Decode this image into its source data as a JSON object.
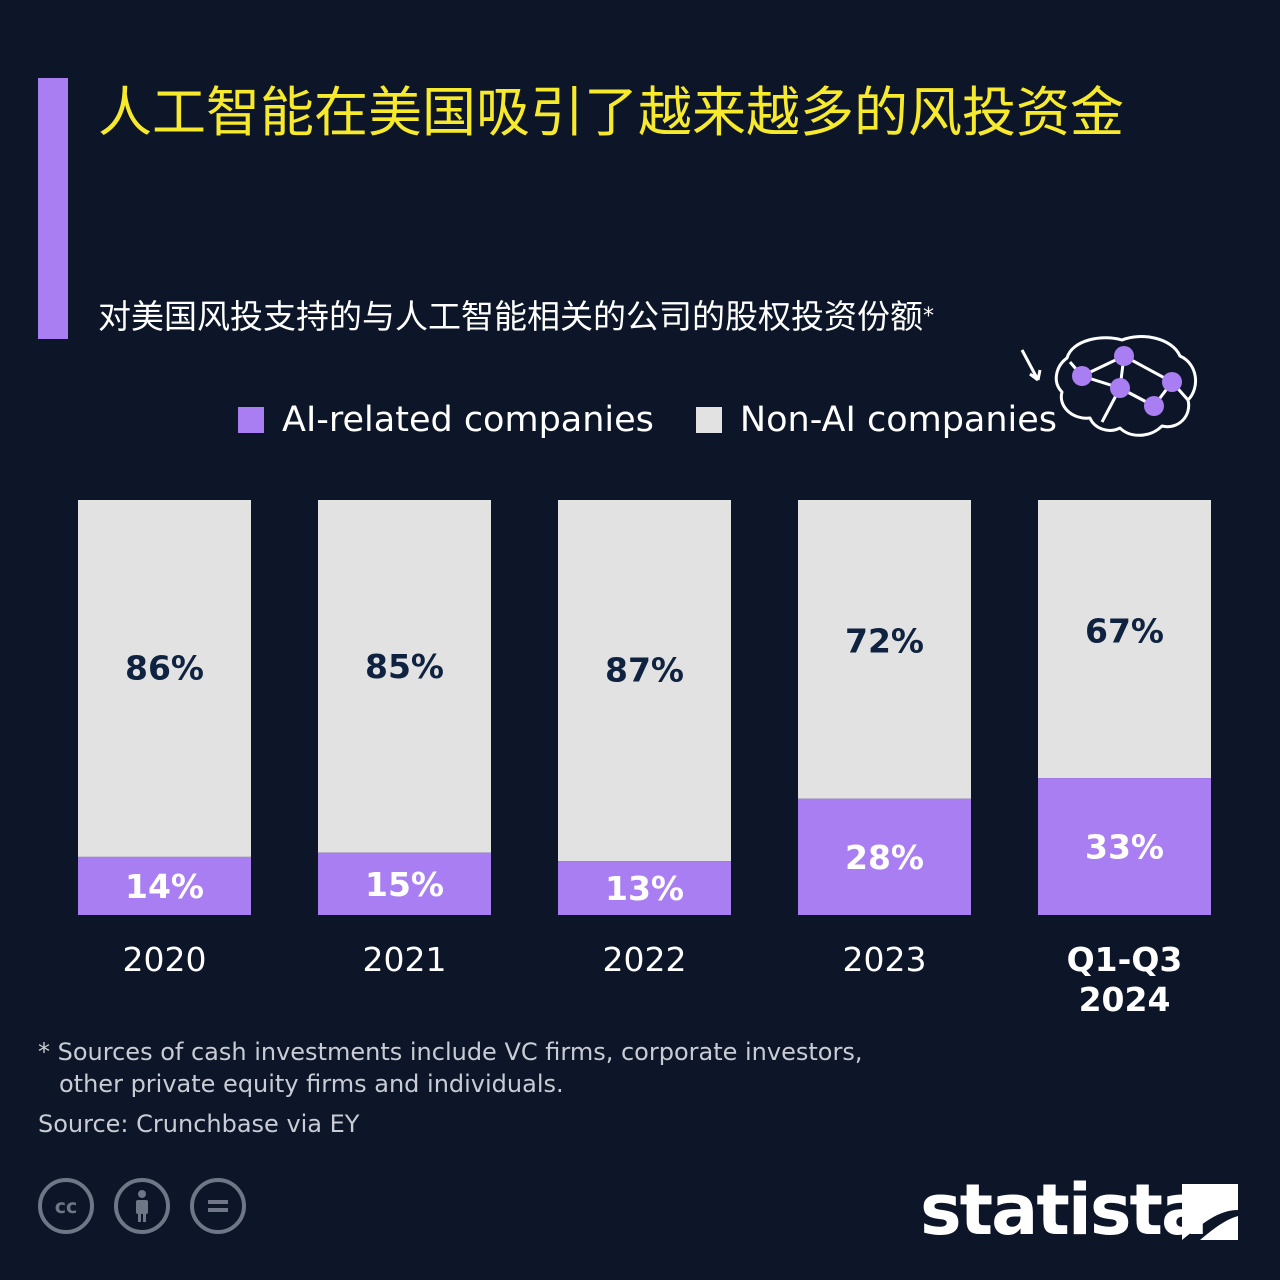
{
  "title": "人工智能在美国吸引了越来越多的风投资金",
  "subtitle": "对美国风投支持的与人工智能相关的公司的股权投资份额",
  "subtitle_marker": "*",
  "colors": {
    "background": "#0c1628",
    "accent": "#a97ef2",
    "title": "#f7e92c",
    "ai": "#a97ef2",
    "non_ai": "#e2e2e2",
    "label_dark": "#0f2340",
    "label_light": "#ffffff"
  },
  "legend": [
    {
      "label": "AI-related companies",
      "color": "#a97ef2"
    },
    {
      "label": "Non-AI companies",
      "color": "#e2e2e2"
    }
  ],
  "chart_data": {
    "type": "bar",
    "stacked": true,
    "title": "人工智能在美国吸引了越来越多的风投资金",
    "subtitle": "对美国风投支持的与人工智能相关的公司的股权投资份额*",
    "categories": [
      "2020",
      "2021",
      "2022",
      "2023",
      "Q1-Q3 2024"
    ],
    "category_lines": [
      [
        "2020"
      ],
      [
        "2021"
      ],
      [
        "2022"
      ],
      [
        "2023"
      ],
      [
        "Q1-Q3",
        "2024"
      ]
    ],
    "series": [
      {
        "name": "AI-related companies",
        "values": [
          14,
          15,
          13,
          28,
          33
        ],
        "labels": [
          "14%",
          "15%",
          "13%",
          "28%",
          "33%"
        ]
      },
      {
        "name": "Non-AI companies",
        "values": [
          86,
          85,
          87,
          72,
          67
        ],
        "labels": [
          "86%",
          "85%",
          "87%",
          "72%",
          "67%"
        ]
      }
    ],
    "ylim": [
      0,
      100
    ],
    "unit": "%",
    "xlabel": "",
    "ylabel": "",
    "grid": false,
    "legend_position": "top"
  },
  "footnote": {
    "marker": "*",
    "line1": "Sources of cash investments include VC firms, corporate investors,",
    "line2": "other private equity firms and individuals."
  },
  "source": "Source: Crunchbase via EY",
  "brand": "statista",
  "icons": [
    "brain-network-icon",
    "cc-icon",
    "by-icon",
    "nd-icon",
    "statista-logo-icon"
  ]
}
